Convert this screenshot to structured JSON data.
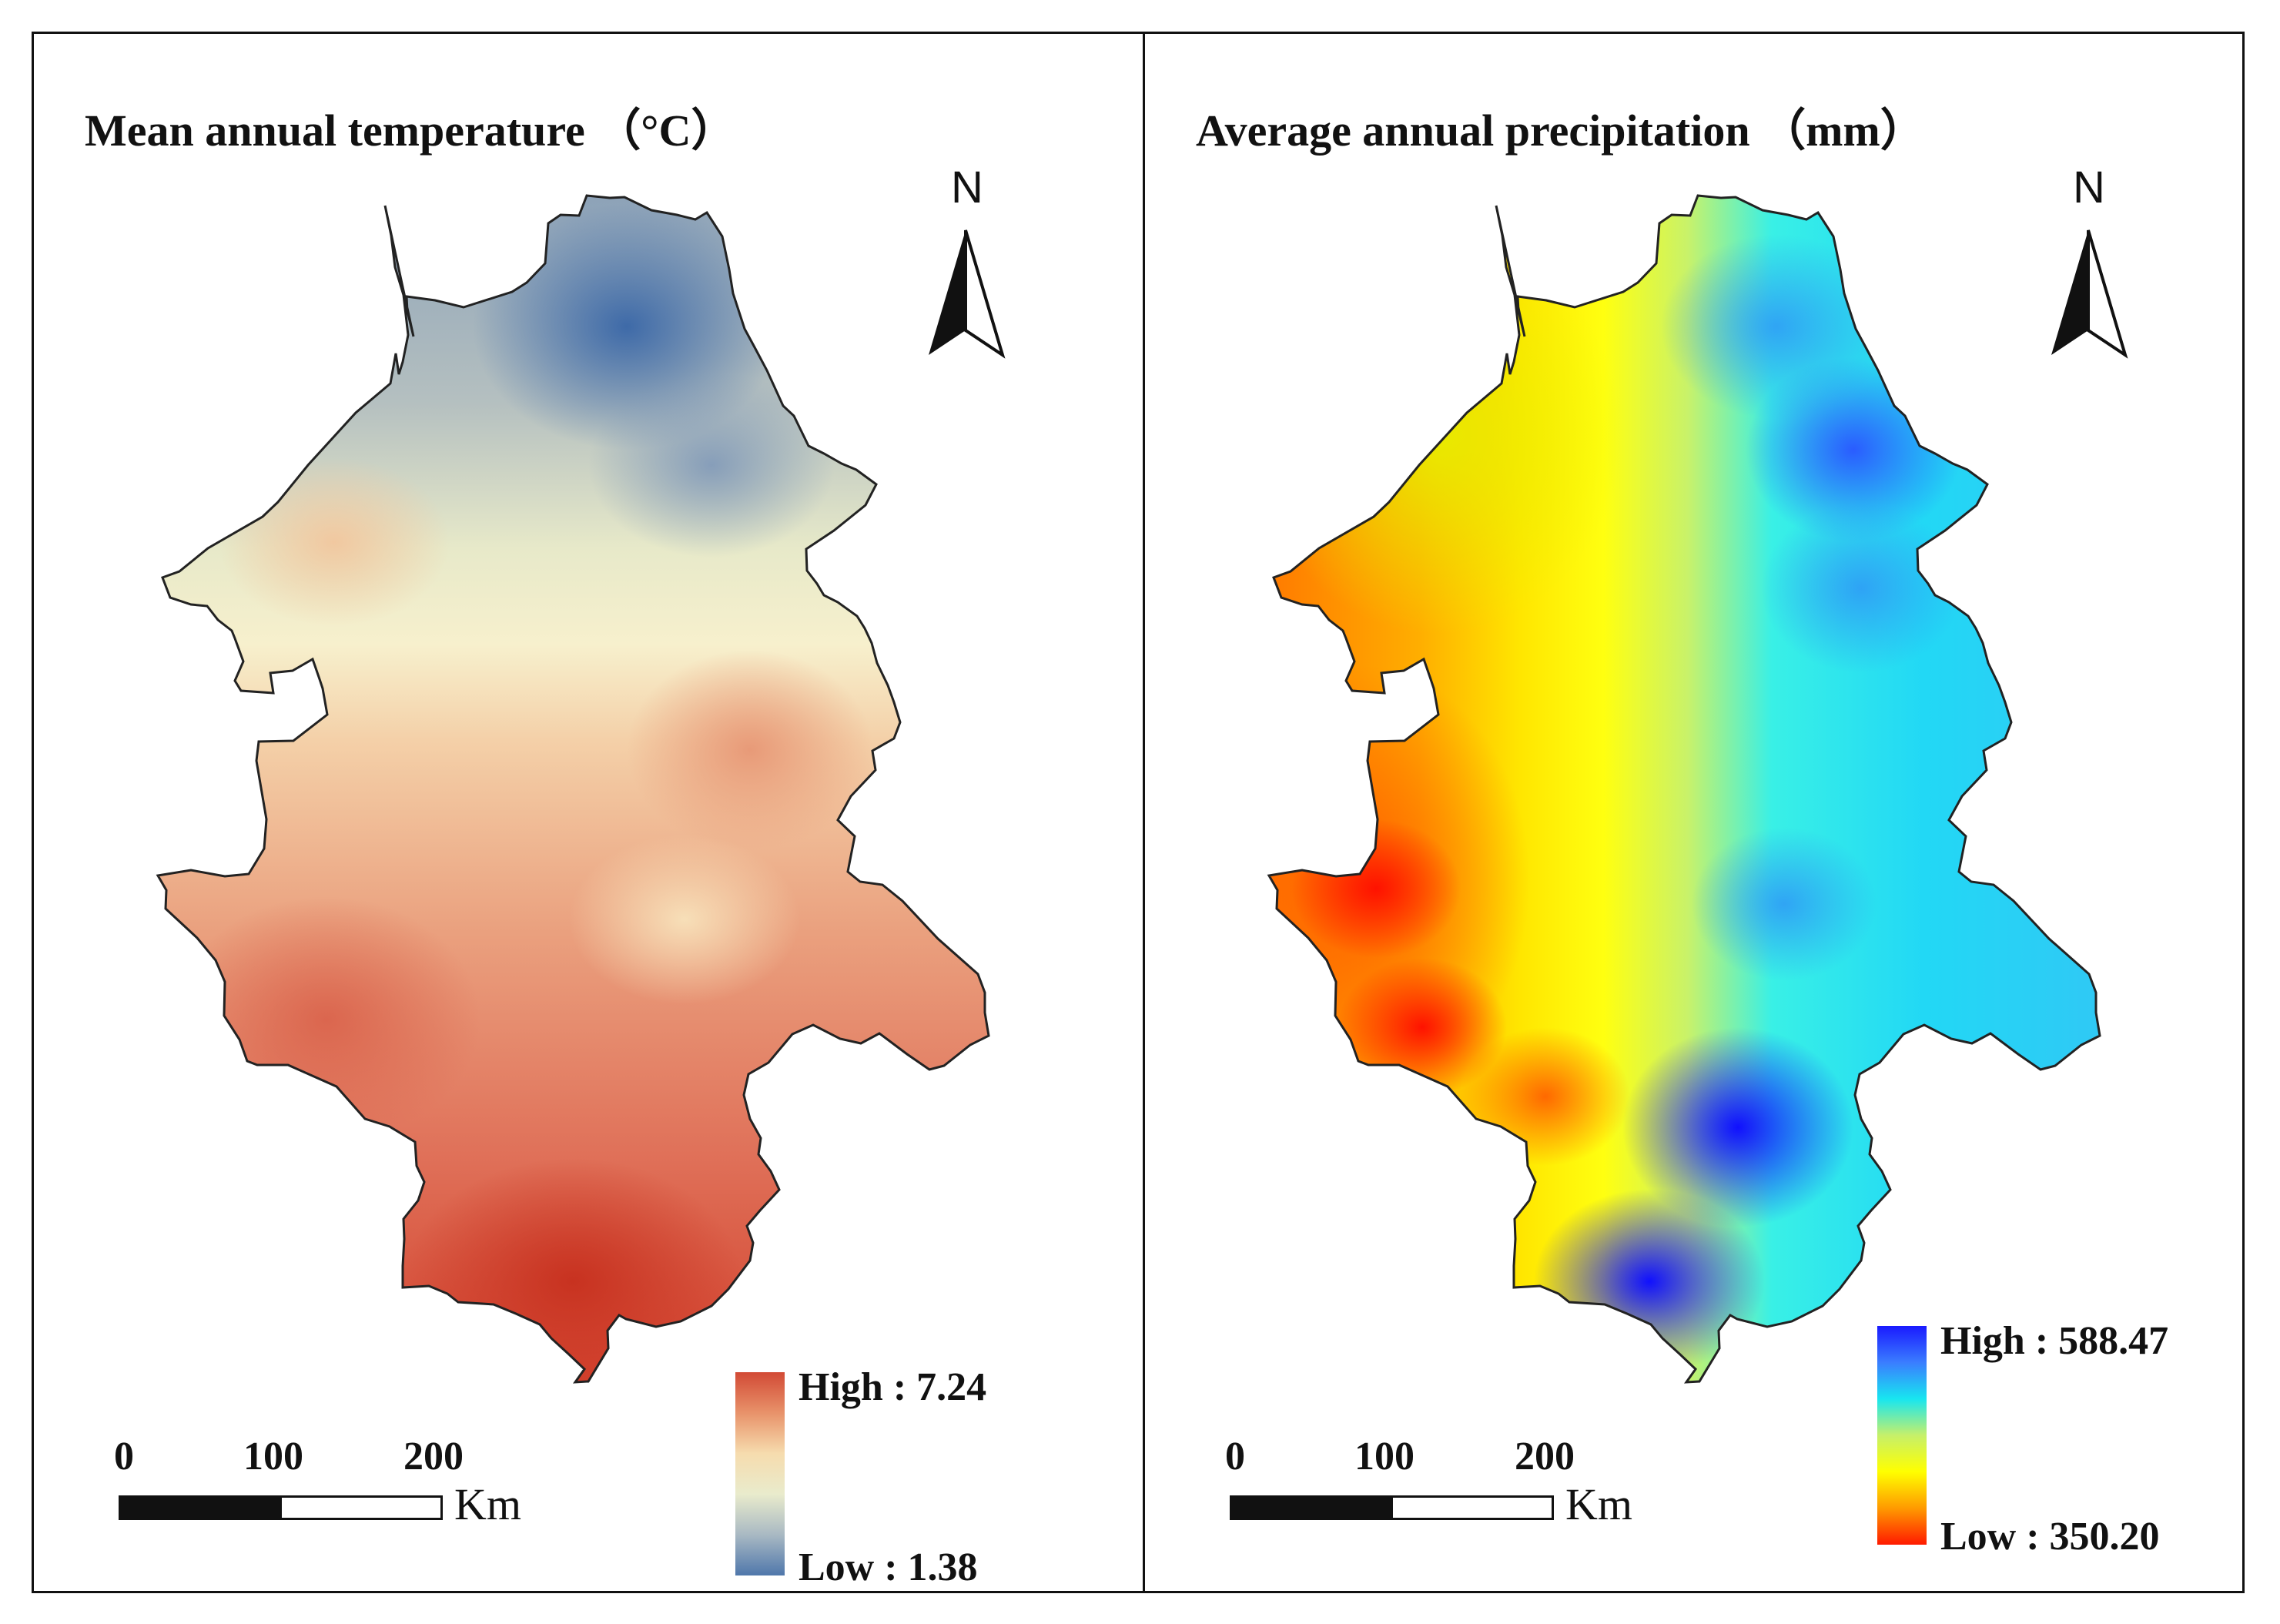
{
  "figure": {
    "left_panel": {
      "title": "Mean annual temperature （°C）",
      "north_label": "N",
      "scale": {
        "ticks": [
          "0",
          "100",
          "200"
        ],
        "unit": "Km"
      },
      "legend": {
        "high_label": "High : 7.24",
        "low_label": "Low : 1.38",
        "high_value": 7.24,
        "low_value": 1.38,
        "ramp_colors": [
          "#d24a35",
          "#e8926a",
          "#f6dcae",
          "#e9ebcc",
          "#a9b9c3",
          "#4f77ab"
        ]
      }
    },
    "right_panel": {
      "title": "Average annual precipitation （mm）",
      "north_label": "N",
      "scale": {
        "ticks": [
          "0",
          "100",
          "200"
        ],
        "unit": "Km"
      },
      "legend": {
        "high_label": "High : 588.47",
        "low_label": "Low : 350.20",
        "high_value": 588.47,
        "low_value": 350.2,
        "ramp_colors": [
          "#1a1aff",
          "#3a7dff",
          "#18e6f0",
          "#c6f06a",
          "#ffff00",
          "#ff9a00",
          "#ff1a00"
        ]
      }
    }
  }
}
